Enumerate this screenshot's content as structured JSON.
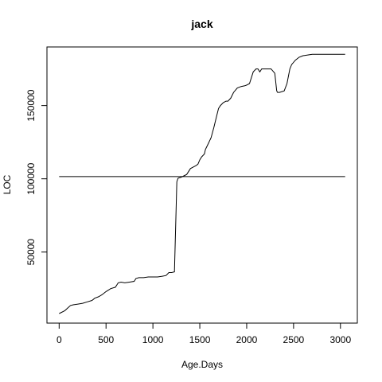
{
  "chart_data": {
    "type": "line",
    "title": "jack",
    "xlabel": "Age.Days",
    "ylabel": "LOC",
    "xlim": [
      -130,
      3180
    ],
    "ylim": [
      1500,
      190000
    ],
    "x_ticks": [
      0,
      500,
      1000,
      1500,
      2000,
      2500,
      3000
    ],
    "y_ticks": [
      50000,
      100000,
      150000
    ],
    "grid": false,
    "legend": "none",
    "series": [
      {
        "x": [
          0,
          60,
          120,
          150,
          200,
          250,
          300,
          350,
          380,
          420,
          460,
          500,
          550,
          600,
          630,
          660,
          700,
          750,
          800,
          820,
          850,
          900,
          950,
          1000,
          1050,
          1100,
          1140,
          1170,
          1200,
          1230,
          1255,
          1265,
          1270,
          1300,
          1330,
          1360,
          1400,
          1430,
          1460,
          1480,
          1500,
          1520,
          1550,
          1560,
          1590,
          1620,
          1650,
          1680,
          1700,
          1720,
          1750,
          1780,
          1800,
          1830,
          1860,
          1900,
          1940,
          1980,
          2000,
          2030,
          2070,
          2100,
          2120,
          2140,
          2160,
          2190,
          2220,
          2260,
          2300,
          2320,
          2330,
          2350,
          2400,
          2430,
          2460,
          2480,
          2520,
          2560,
          2600,
          2650,
          2700,
          3050
        ],
        "y": [
          8000,
          10000,
          13500,
          14000,
          14500,
          15000,
          16000,
          17000,
          18500,
          19500,
          21000,
          23000,
          25000,
          26000,
          29000,
          29500,
          29000,
          29500,
          30000,
          32000,
          32500,
          32500,
          33000,
          33000,
          33000,
          33500,
          34000,
          36000,
          36000,
          36500,
          98000,
          100000,
          100500,
          101000,
          102000,
          103000,
          107000,
          108000,
          109000,
          110000,
          113000,
          115000,
          117000,
          120000,
          124000,
          128000,
          135000,
          143000,
          148000,
          150000,
          152000,
          153000,
          153000,
          155000,
          159000,
          162000,
          163000,
          163500,
          164000,
          165000,
          173000,
          175000,
          175000,
          173000,
          175000,
          175000,
          175000,
          175000,
          172000,
          160000,
          159000,
          159000,
          160000,
          165000,
          175000,
          178000,
          181000,
          183000,
          184000,
          184500,
          185000,
          185000
        ]
      }
    ],
    "reference_line": {
      "x": [
        0,
        3050
      ],
      "y": 101500
    }
  }
}
